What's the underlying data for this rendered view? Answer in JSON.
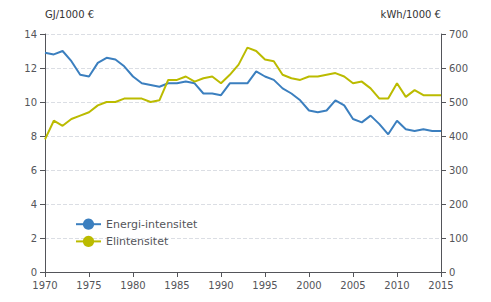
{
  "chart_data": {
    "type": "line",
    "ylabel": "GJ/1000 €",
    "y2label": "kWh/1000 €",
    "x": [
      1970,
      1971,
      1972,
      1973,
      1974,
      1975,
      1976,
      1977,
      1978,
      1979,
      1980,
      1981,
      1982,
      1983,
      1984,
      1985,
      1986,
      1987,
      1988,
      1989,
      1990,
      1991,
      1992,
      1993,
      1994,
      1995,
      1996,
      1997,
      1998,
      1999,
      2000,
      2001,
      2002,
      2003,
      2004,
      2005,
      2006,
      2007,
      2008,
      2009,
      2010,
      2011,
      2012,
      2013,
      2014,
      2015
    ],
    "series": [
      {
        "name": "Energi-intensitet",
        "color": "#3B7FBF",
        "values": [
          12.9,
          12.8,
          13.0,
          12.4,
          11.6,
          11.5,
          12.3,
          12.6,
          12.5,
          12.1,
          11.5,
          11.1,
          11.0,
          10.9,
          11.1,
          11.1,
          11.2,
          11.1,
          10.5,
          10.5,
          10.4,
          11.1,
          11.1,
          11.1,
          11.8,
          11.5,
          11.3,
          10.8,
          10.5,
          10.1,
          9.5,
          9.4,
          9.5,
          10.1,
          9.8,
          9.0,
          8.8,
          9.2,
          8.7,
          8.1,
          8.9,
          8.4,
          8.3,
          8.4,
          8.3,
          8.3
        ]
      },
      {
        "name": "Elintensitet",
        "color": "#BBBB00",
        "axis": "y2",
        "values": [
          390,
          445,
          430,
          450,
          460,
          470,
          490,
          500,
          500,
          510,
          510,
          510,
          500,
          505,
          565,
          565,
          575,
          560,
          570,
          575,
          555,
          580,
          610,
          660,
          650,
          625,
          620,
          580,
          570,
          565,
          575,
          575,
          580,
          585,
          575,
          555,
          560,
          540,
          510,
          510,
          555,
          515,
          535,
          520,
          520,
          520
        ]
      }
    ],
    "xlim": [
      1970,
      2015
    ],
    "xticks": [
      1970,
      1975,
      1980,
      1985,
      1990,
      1995,
      2000,
      2005,
      2010,
      2015
    ],
    "ylim": [
      0,
      14
    ],
    "yticks": [
      0,
      2,
      4,
      6,
      8,
      10,
      12,
      14
    ],
    "y2lim": [
      0,
      700
    ],
    "y2ticks": [
      0,
      100,
      200,
      300,
      400,
      500,
      600,
      700
    ],
    "grid": true,
    "legend": "lower left"
  }
}
